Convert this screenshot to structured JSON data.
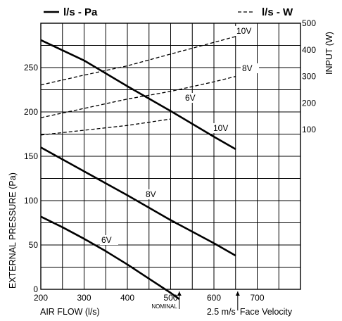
{
  "chart_data": {
    "type": "line",
    "legend": {
      "solid_label": "l/s - Pa",
      "dashed_label": "l/s - W"
    },
    "xlabel": "AIR FLOW (l/s)",
    "ylabel": "EXTERNAL PRESSURE (Pa)",
    "y2label": "INPUT (W)",
    "xlim": [
      200,
      800
    ],
    "ylim": [
      0,
      300
    ],
    "y2lim": [
      -500,
      500
    ],
    "x_ticks": [
      "200",
      "300",
      "400",
      "500",
      "600",
      "700"
    ],
    "y_ticks": [
      "0",
      "50",
      "100",
      "150",
      "200",
      "250"
    ],
    "y2_ticks": [
      "100",
      "200",
      "300",
      "400",
      "500"
    ],
    "grid": true,
    "annotations": {
      "nominal": {
        "text": "NOMINAL",
        "x": 520
      },
      "face_velocity": {
        "text": "2.5 m/s Face Velocity",
        "x": 655
      }
    },
    "series": [
      {
        "name": "10V",
        "axis": "pressure",
        "style": "solid",
        "x": [
          200,
          300,
          400,
          500,
          600,
          650
        ],
        "y": [
          281,
          258,
          229,
          201,
          172,
          158
        ]
      },
      {
        "name": "8V",
        "axis": "pressure",
        "style": "solid",
        "x": [
          200,
          300,
          400,
          500,
          600,
          650
        ],
        "y": [
          160,
          133,
          106,
          78,
          52,
          38
        ]
      },
      {
        "name": "6V",
        "axis": "pressure",
        "style": "solid",
        "x": [
          200,
          250,
          300,
          350,
          400,
          450,
          500,
          520
        ],
        "y": [
          82,
          70,
          57,
          43,
          28,
          12,
          -4,
          -11
        ]
      },
      {
        "name": "10V",
        "axis": "power",
        "style": "dashed",
        "x": [
          200,
          300,
          400,
          500,
          600,
          650
        ],
        "y": [
          268,
          305,
          340,
          384,
          428,
          450
        ]
      },
      {
        "name": "8V",
        "axis": "power",
        "style": "dashed",
        "x": [
          200,
          300,
          400,
          500,
          600,
          650
        ],
        "y": [
          145,
          180,
          215,
          244,
          280,
          300
        ]
      },
      {
        "name": "6V",
        "axis": "power",
        "style": "dashed",
        "x": [
          200,
          300,
          400,
          500
        ],
        "y": [
          80,
          98,
          116,
          140
        ]
      }
    ]
  }
}
